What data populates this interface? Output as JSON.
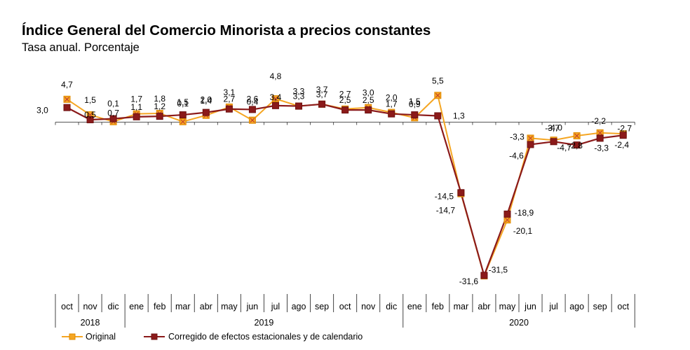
{
  "chart_data": {
    "type": "line",
    "title": "Índice General del Comercio Minorista a precios constantes",
    "subtitle": "Tasa anual. Porcentaje",
    "categories": [
      "oct",
      "nov",
      "dic",
      "ene",
      "feb",
      "mar",
      "abr",
      "may",
      "jun",
      "jul",
      "ago",
      "sep",
      "oct",
      "nov",
      "dic",
      "ene",
      "feb",
      "mar",
      "abr",
      "may",
      "jun",
      "jul",
      "ago",
      "sep",
      "oct"
    ],
    "year_groups": [
      {
        "label": "2018",
        "start": 0,
        "end": 2
      },
      {
        "label": "2019",
        "start": 3,
        "end": 14
      },
      {
        "label": "2020",
        "start": 15,
        "end": 24
      }
    ],
    "series": [
      {
        "name": "Original",
        "color": "#f5a623",
        "values": [
          4.7,
          1.5,
          0.1,
          1.7,
          1.8,
          0.1,
          1.4,
          3.1,
          0.4,
          4.8,
          3.3,
          3.7,
          2.7,
          3.0,
          2.0,
          0.9,
          5.5,
          -14.7,
          -31.6,
          -20.1,
          -3.3,
          -3.7,
          -2.8,
          -2.2,
          -2.4
        ],
        "labels": [
          "4,7",
          "1,5",
          "0,1",
          "1,7",
          "1,8",
          "0,1",
          "1,4",
          "3,1",
          "0,4",
          "4,8",
          "3,3",
          "3,7",
          "2,7",
          "3,0",
          "2,0",
          "0,9",
          "5,5",
          "-14,7",
          "-31,6",
          "-20,1",
          "-3,3",
          "-3,7",
          "-2,8",
          "-2,2",
          "-2,4"
        ]
      },
      {
        "name": "Corregido de efectos estacionales y de calendario",
        "color": "#8b1a1a",
        "values": [
          3.0,
          0.5,
          0.7,
          1.1,
          1.2,
          1.5,
          2.0,
          2.7,
          2.6,
          3.4,
          3.3,
          3.7,
          2.5,
          2.5,
          1.7,
          1.5,
          1.3,
          -14.5,
          -31.5,
          -18.9,
          -4.6,
          -4.0,
          -4.7,
          -3.3,
          -2.7
        ],
        "labels": [
          "3,0",
          "0,5",
          "0,7",
          "1,1",
          "1,2",
          "1,5",
          "2,0",
          "2,7",
          "2,6",
          "3,4",
          "3,3",
          "3,7",
          "2,5",
          "2,5",
          "1,7",
          "1,5",
          "1,3",
          "-14,5",
          "-31,5",
          "-18,9",
          "-4,6",
          "-4,0",
          "-4,7",
          "-3,3",
          "-2,7"
        ]
      }
    ],
    "ylim": [
      -33,
      7
    ],
    "grid": false,
    "legend_position": "bottom-left"
  }
}
